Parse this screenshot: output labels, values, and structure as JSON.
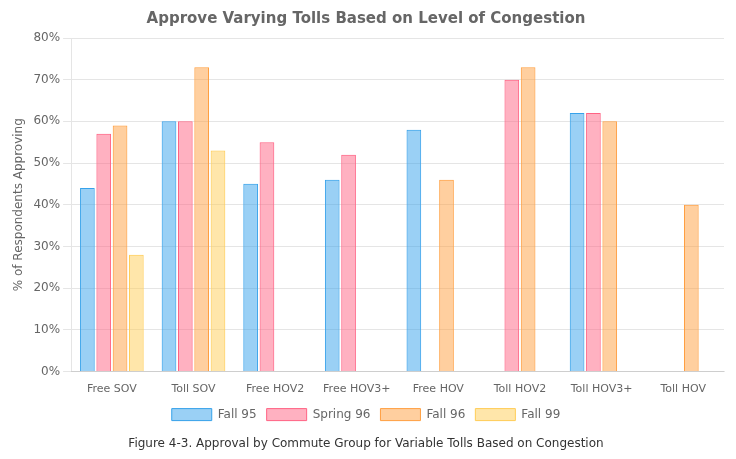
{
  "chart_data": {
    "type": "bar",
    "title": "Approve Varying Tolls Based on Level of Congestion",
    "ylabel": "% of Respondents Approving",
    "caption": "Figure 4-3. Approval by Commute Group for Variable Tolls Based on Congestion",
    "categories": [
      "Free SOV",
      "Toll SOV",
      "Free HOV2",
      "Free HOV3+",
      "Free HOV",
      "Toll HOV2",
      "Toll HOV3+",
      "Toll HOV"
    ],
    "series": [
      {
        "name": "Fall 95",
        "values": [
          44,
          60,
          45,
          46,
          58,
          null,
          62,
          null
        ]
      },
      {
        "name": "Spring 96",
        "values": [
          57,
          60,
          55,
          52,
          null,
          70,
          62,
          null
        ]
      },
      {
        "name": "Fall 96",
        "values": [
          59,
          73,
          null,
          null,
          46,
          73,
          60,
          40
        ]
      },
      {
        "name": "Fall 99",
        "values": [
          28,
          53,
          null,
          null,
          null,
          null,
          null,
          null
        ]
      }
    ],
    "ylim": [
      0,
      80
    ],
    "yticks": [
      {
        "value": 0,
        "label": "0%"
      },
      {
        "value": 10,
        "label": "10%"
      },
      {
        "value": 20,
        "label": "20%"
      },
      {
        "value": 30,
        "label": "30%"
      },
      {
        "value": 40,
        "label": "40%"
      },
      {
        "value": 50,
        "label": "50%"
      },
      {
        "value": 60,
        "label": "60%"
      },
      {
        "value": 70,
        "label": "70%"
      },
      {
        "value": 80,
        "label": "80%"
      }
    ],
    "grid": true,
    "legend": "bottom"
  }
}
